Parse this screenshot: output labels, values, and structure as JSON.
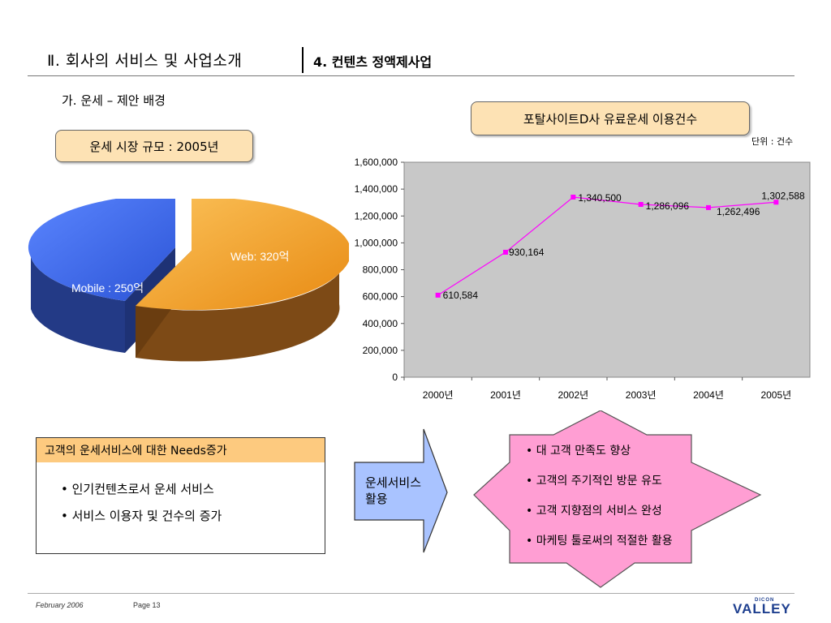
{
  "header": {
    "title": "Ⅱ. 회사의 서비스 및 사업소개",
    "subtitle": "4. 컨텐츠 정액제사업"
  },
  "section_heading": "가. 운세 – 제안 배경",
  "pie": {
    "title": "운세 시장 규모 : 2005년",
    "slices": [
      {
        "label": "Web: 320억",
        "value": 320,
        "color": "#f7a22b"
      },
      {
        "label": "Mobile : 250억",
        "value": 250,
        "color": "#3f6cf0"
      }
    ]
  },
  "chart_title": "포탈사이트D사 유료운세 이용건수",
  "unit_label": "단위 : 건수",
  "chart_data": {
    "type": "line",
    "categories": [
      "2000년",
      "2001년",
      "2002년",
      "2003년",
      "2004년",
      "2005년"
    ],
    "values": [
      610584,
      930164,
      1340500,
      1286096,
      1262496,
      1302588
    ],
    "data_labels": [
      "610,584",
      "930,164",
      "1,340,500",
      "1,286,096",
      "1,262,496",
      "1,302,588"
    ],
    "ylim": [
      0,
      1600000
    ],
    "yticks": [
      "1,600,000",
      "1,400,000",
      "1,200,000",
      "1,000,000",
      "800,000",
      "600,000",
      "400,000",
      "200,000",
      "0"
    ],
    "ytick_values": [
      1600000,
      1400000,
      1200000,
      1000000,
      800000,
      600000,
      400000,
      200000,
      0
    ],
    "line_color": "#ff00ff",
    "plot_bg": "#c8c8c8",
    "grid": false
  },
  "needs": {
    "header": "고객의 운세서비스에 대한 Needs증가",
    "items": [
      "• 인기컨텐츠로서 운세 서비스",
      "• 서비스 이용자 및 건수의 증가"
    ]
  },
  "arrow_text": "운세서비스 활용",
  "results": [
    "• 대 고객 만족도 향상",
    "• 고객의 주기적인 방문 유도",
    "• 고객 지향점의 서비스 완성",
    "• 마케팅 툴로써의 적절한 활용"
  ],
  "footer": {
    "date": "February  2006",
    "page": "Page 13",
    "logo_small": "DICON",
    "logo": "VALLEY"
  }
}
